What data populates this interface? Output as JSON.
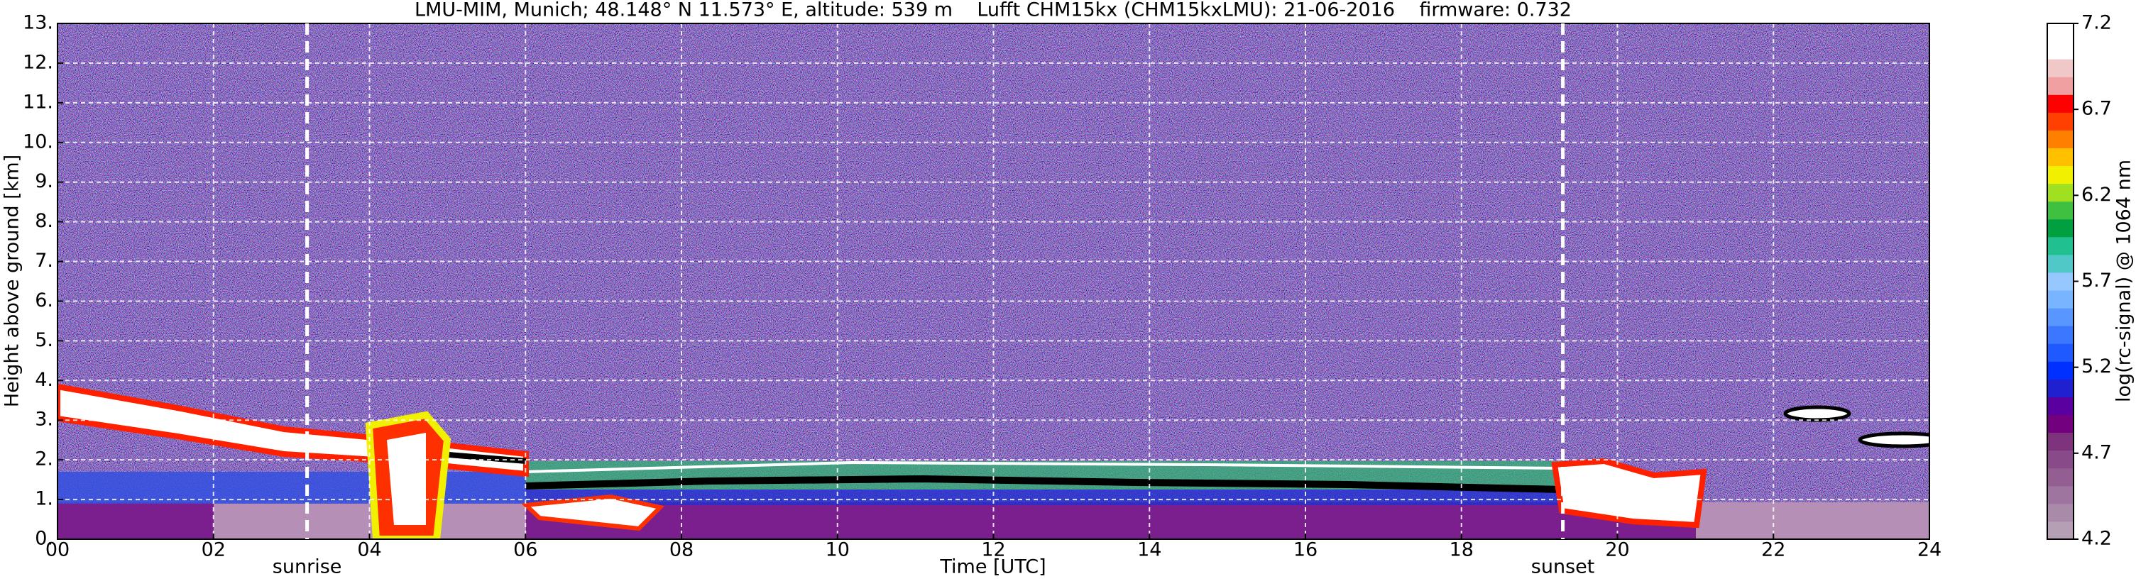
{
  "chart_data": {
    "type": "heatmap",
    "title": "LMU-MIM, Munich; 48.148° N 11.573° E, altitude: 539 m    Lufft CHM15kx (CHM15kxLMU): 21-06-2016    firmware: 0.732",
    "x_label": "Time [UTC]",
    "y_label": "Height above ground [km]",
    "xlim": [
      0,
      24
    ],
    "xticks": [
      {
        "value": 0,
        "label": "00"
      },
      {
        "value": 2,
        "label": "02"
      },
      {
        "value": 4,
        "label": "04"
      },
      {
        "value": 6,
        "label": "06"
      },
      {
        "value": 8,
        "label": "08"
      },
      {
        "value": 10,
        "label": "10"
      },
      {
        "value": 12,
        "label": "12"
      },
      {
        "value": 14,
        "label": "14"
      },
      {
        "value": 16,
        "label": "16"
      },
      {
        "value": 18,
        "label": "18"
      },
      {
        "value": 20,
        "label": "20"
      },
      {
        "value": 22,
        "label": "22"
      },
      {
        "value": 24,
        "label": "24"
      }
    ],
    "ylim": [
      0,
      13
    ],
    "yticks": [
      {
        "value": 0,
        "label": "0."
      },
      {
        "value": 1,
        "label": "1."
      },
      {
        "value": 2,
        "label": "2."
      },
      {
        "value": 3,
        "label": "3."
      },
      {
        "value": 4,
        "label": "4."
      },
      {
        "value": 5,
        "label": "5."
      },
      {
        "value": 6,
        "label": "6."
      },
      {
        "value": 7,
        "label": "7."
      },
      {
        "value": 8,
        "label": "8."
      },
      {
        "value": 9,
        "label": "9."
      },
      {
        "value": 10,
        "label": "10."
      },
      {
        "value": 11,
        "label": "11."
      },
      {
        "value": 12,
        "label": "12."
      },
      {
        "value": 13,
        "label": "13."
      }
    ],
    "grid": true,
    "annotations": [
      {
        "label": "sunrise",
        "x": 3.2
      },
      {
        "label": "sunset",
        "x": 19.3
      }
    ],
    "colorbar": {
      "label": "log(rc-signal) @ 1064 nm",
      "lim": [
        4.2,
        7.2
      ],
      "ticks": [
        4.2,
        4.7,
        5.2,
        5.7,
        6.2,
        6.7,
        7.2
      ],
      "colors": [
        "#b49fb4",
        "#a98aa9",
        "#9e759e",
        "#935f93",
        "#884a88",
        "#7d347d",
        "#72007f",
        "#5a00a0",
        "#2020d0",
        "#0030ff",
        "#1e5aff",
        "#3c78ff",
        "#5a96ff",
        "#78b4ff",
        "#96c8ff",
        "#50c8c8",
        "#20c090",
        "#00a040",
        "#40c040",
        "#a0e020",
        "#f0f000",
        "#ffc000",
        "#ff8000",
        "#ff4000",
        "#ff0000",
        "#f0a0a0",
        "#f0c8c8",
        "#ffffff",
        "#ffffff"
      ]
    }
  }
}
